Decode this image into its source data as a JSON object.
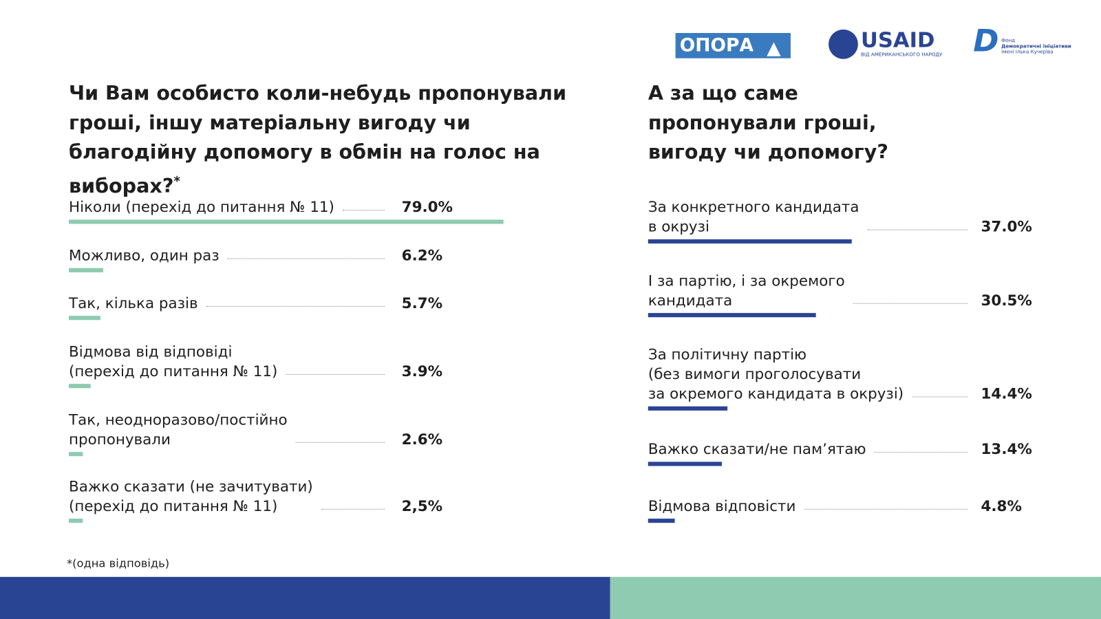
{
  "logos": {
    "opora": "ОПОРА",
    "usaid": "USAID",
    "usaid_sub": "ВІД АМЕРИКАНСЬКОГО НАРОДУ",
    "fund": [
      "Фонд",
      "Демократичні ініціативи",
      "імені Ілька Кучеріва"
    ]
  },
  "chart_data": [
    {
      "type": "bar",
      "orientation": "horizontal",
      "title": "Чи Вам особисто коли-небудь пропонували гроші, іншу матеріальну вигоду чи благодійну допомогу в обмін на голос на виборах?",
      "title_note": "*",
      "categories": [
        "Ніколи (перехід до питання № 11)",
        "Можливо, один раз",
        "Так, кілька разів",
        "Відмова від відповіді\n(перехід до питання № 11)",
        "Так, неодноразово/постійно\nпропонували",
        "Важко сказати (не зачитувати)\n(перехід до питання № 11)"
      ],
      "values": [
        79.0,
        6.2,
        5.7,
        3.9,
        2.6,
        2.5
      ],
      "value_labels": [
        "79.0%",
        "6.2%",
        "5.7%",
        "3.9%",
        "2.6%",
        "2,5%"
      ],
      "color": "#8ecbb0"
    },
    {
      "type": "bar",
      "orientation": "horizontal",
      "title": "А за що саме пропонували гроші, вигоду чи допомогу?",
      "categories": [
        "За конкретного кандидата\nв окрузі",
        "І за партію, і за окремого\nкандидата",
        "За політичну партію\n(без вимоги проголосувати\nза окремого кандидата в окрузі)",
        "Важко сказати/не пам’ятаю",
        "Відмова відповісти"
      ],
      "values": [
        37.0,
        30.5,
        14.4,
        13.4,
        4.8
      ],
      "value_labels": [
        "37.0%",
        "30.5%",
        "14.4%",
        "13.4%",
        "4.8%"
      ],
      "color": "#2a4494"
    }
  ],
  "footnote": {
    "mark": "*",
    "text": "(одна відповідь)"
  }
}
